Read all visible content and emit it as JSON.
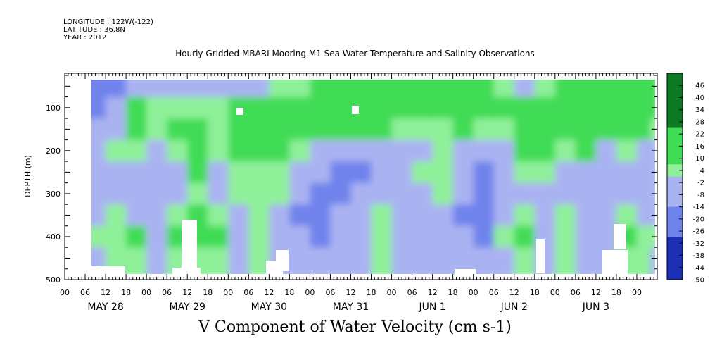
{
  "header": {
    "longitude": "LONGITUDE : 122W(-122)",
    "latitude": "LATITUDE : 36.8N",
    "year": "YEAR : 2012"
  },
  "title": "Hourly Gridded MBARI Mooring M1 Sea Water Temperature and Salinity Observations",
  "caption": "V Component of Water Velocity (cm s-1)",
  "colors": {
    "negative_strong": "#1c2fb5",
    "negative_mid": "#6f83ec",
    "negative_weak": "#aab3f2",
    "positive_weak": "#8ff09a",
    "positive_mid": "#3fdc55",
    "positive_strong": "#0f7a24",
    "missing": "#ffffff"
  },
  "chart_data": {
    "type": "heatmap",
    "title": "Hourly Gridded MBARI Mooring M1 Sea Water Temperature and Salinity Observations",
    "xlabel": "",
    "ylabel": "DEPTH (m)",
    "xlim_hours": [
      0,
      174
    ],
    "ylim": [
      500,
      20
    ],
    "y_ticks": [
      100,
      200,
      300,
      400,
      500
    ],
    "x_hour_ticks": [
      "00",
      "06",
      "12",
      "18",
      "00",
      "06",
      "12",
      "18",
      "00",
      "06",
      "12",
      "18",
      "00",
      "06",
      "12",
      "18",
      "00",
      "06",
      "12",
      "18",
      "00",
      "06",
      "12",
      "18",
      "00",
      "06",
      "12",
      "18",
      "00"
    ],
    "x_tick_hours": [
      0,
      6,
      12,
      18,
      24,
      30,
      36,
      42,
      48,
      54,
      60,
      66,
      72,
      78,
      84,
      90,
      96,
      102,
      108,
      114,
      120,
      126,
      132,
      138,
      144,
      150,
      156,
      162,
      168
    ],
    "day_labels": [
      "MAY 28",
      "MAY 29",
      "MAY 30",
      "MAY 31",
      "JUN  1",
      "JUN  2",
      "JUN  3"
    ],
    "day_label_hours": [
      12,
      36,
      60,
      84,
      108,
      132,
      156
    ],
    "data_start_hour": 6,
    "data_depth_range": [
      20,
      485
    ],
    "colorbar": {
      "labels": [
        "46",
        "40",
        "34",
        "28",
        "22",
        "16",
        "10",
        "4",
        "-2",
        "-8",
        "-14",
        "-20",
        "-26",
        "-32",
        "-38",
        "-44",
        "-50"
      ],
      "min": -50,
      "max": 52,
      "step": 3
    },
    "series": [
      {
        "values_description_depths": [
          50,
          100,
          150,
          200,
          250,
          300,
          350,
          400,
          450
        ],
        "columns": [
          {
            "hour": 6,
            "v": [
              -20,
              -14,
              -8,
              -4,
              -6,
              -8,
              -4,
              2,
              -6
            ]
          },
          {
            "hour": 12,
            "v": [
              -16,
              -12,
              -6,
              4,
              -2,
              -8,
              4,
              8,
              2
            ]
          },
          {
            "hour": 18,
            "v": [
              -6,
              10,
              14,
              6,
              -4,
              -10,
              -2,
              10,
              4
            ]
          },
          {
            "hour": 24,
            "v": [
              -8,
              4,
              8,
              -2,
              -8,
              -12,
              -6,
              -2,
              -4
            ]
          },
          {
            "hour": 30,
            "v": [
              -10,
              2,
              10,
              4,
              -4,
              -6,
              6,
              12,
              6
            ]
          },
          {
            "hour": 36,
            "v": [
              -4,
              6,
              12,
              14,
              10,
              8,
              14,
              10,
              4
            ]
          },
          {
            "hour": 42,
            "v": [
              -2,
              8,
              6,
              2,
              -4,
              -2,
              6,
              10,
              8
            ]
          },
          {
            "hour": 48,
            "v": [
              -6,
              10,
              14,
              10,
              4,
              2,
              -4,
              -8,
              -6
            ]
          },
          {
            "hour": 54,
            "v": [
              -4,
              12,
              16,
              12,
              8,
              4,
              8,
              6,
              2
            ]
          },
          {
            "hour": 60,
            "v": [
              2,
              14,
              18,
              12,
              6,
              2,
              -6,
              -10,
              -8
            ]
          },
          {
            "hour": 66,
            "v": [
              6,
              16,
              14,
              6,
              -6,
              -10,
              -14,
              -12,
              -8
            ]
          },
          {
            "hour": 72,
            "v": [
              10,
              18,
              12,
              -4,
              -12,
              -14,
              -16,
              -14,
              -10
            ]
          },
          {
            "hour": 78,
            "v": [
              12,
              20,
              14,
              -6,
              -14,
              -16,
              -12,
              -10,
              -8
            ]
          },
          {
            "hour": 84,
            "v": [
              10,
              18,
              12,
              -8,
              -14,
              -12,
              -8,
              -4,
              -6
            ]
          },
          {
            "hour": 90,
            "v": [
              12,
              16,
              10,
              -6,
              -10,
              -8,
              4,
              8,
              4
            ]
          },
          {
            "hour": 96,
            "v": [
              14,
              18,
              8,
              -2,
              -4,
              -6,
              -10,
              -6,
              -4
            ]
          },
          {
            "hour": 102,
            "v": [
              12,
              16,
              6,
              -4,
              6,
              -2,
              -12,
              -8,
              -6
            ]
          },
          {
            "hour": 108,
            "v": [
              10,
              14,
              8,
              2,
              8,
              2,
              -8,
              -4,
              -2
            ]
          },
          {
            "hour": 114,
            "v": [
              12,
              18,
              10,
              -2,
              -6,
              -10,
              -14,
              -10,
              -6
            ]
          },
          {
            "hour": 120,
            "v": [
              10,
              14,
              6,
              -8,
              -14,
              -16,
              -18,
              -14,
              -10
            ]
          },
          {
            "hour": 126,
            "v": [
              8,
              12,
              4,
              -10,
              -12,
              -8,
              -4,
              2,
              -4
            ]
          },
          {
            "hour": 132,
            "v": [
              -4,
              14,
              20,
              16,
              6,
              -4,
              6,
              10,
              4
            ]
          },
          {
            "hour": 138,
            "v": [
              6,
              16,
              18,
              10,
              2,
              -8,
              -4,
              -8,
              -6
            ]
          },
          {
            "hour": 144,
            "v": [
              12,
              20,
              16,
              4,
              -6,
              -10,
              4,
              6,
              2
            ]
          },
          {
            "hour": 150,
            "v": [
              14,
              22,
              18,
              12,
              -4,
              -6,
              -10,
              -8,
              -4
            ]
          },
          {
            "hour": 156,
            "v": [
              10,
              16,
              10,
              -2,
              -8,
              -10,
              -8,
              -6,
              -4
            ]
          },
          {
            "hour": 162,
            "v": [
              12,
              20,
              14,
              2,
              -4,
              -8,
              6,
              10,
              6
            ]
          },
          {
            "hour": 168,
            "v": [
              16,
              22,
              12,
              0,
              -8,
              -12,
              -6,
              4,
              2
            ]
          },
          {
            "hour": 172,
            "v": [
              18,
              20,
              8,
              -2,
              -10,
              -12,
              -8,
              2,
              0
            ]
          }
        ]
      }
    ]
  }
}
